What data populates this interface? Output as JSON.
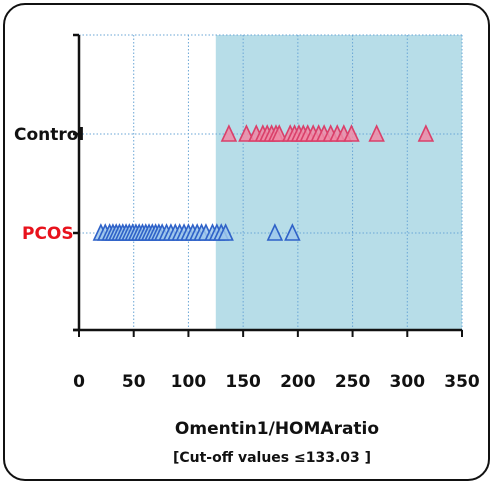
{
  "chart_data": {
    "type": "scatter",
    "title": "",
    "xlabel": "Omentin1/HOMAratio",
    "note": "[Cut-off values ≤133.03 ]",
    "xlim": [
      0,
      350
    ],
    "xticks": [
      0,
      50,
      100,
      150,
      200,
      250,
      300,
      350
    ],
    "grid": true,
    "cutoff": 133.03,
    "shaded_region_from": 125,
    "shade_color": "#b7dde8",
    "categories": [
      "PCOS",
      "Control"
    ],
    "series": [
      {
        "name": "Control",
        "label_color": "#111111",
        "marker_fill": "#f08aa6",
        "marker_stroke": "#d9406a",
        "x": [
          137,
          153,
          162,
          168,
          172,
          176,
          180,
          183,
          193,
          197,
          201,
          205,
          209,
          214,
          219,
          224,
          230,
          236,
          242,
          249,
          272,
          317
        ]
      },
      {
        "name": "PCOS",
        "label_color": "#e8121c",
        "marker_fill": "#9fc8ec",
        "marker_stroke": "#2f62c8",
        "x": [
          20,
          24,
          28,
          31,
          34,
          37,
          40,
          43,
          46,
          49,
          52,
          55,
          58,
          61,
          64,
          67,
          70,
          73,
          76,
          80,
          84,
          88,
          92,
          96,
          100,
          104,
          108,
          112,
          116,
          122,
          126,
          130,
          134,
          179,
          195
        ]
      }
    ]
  }
}
